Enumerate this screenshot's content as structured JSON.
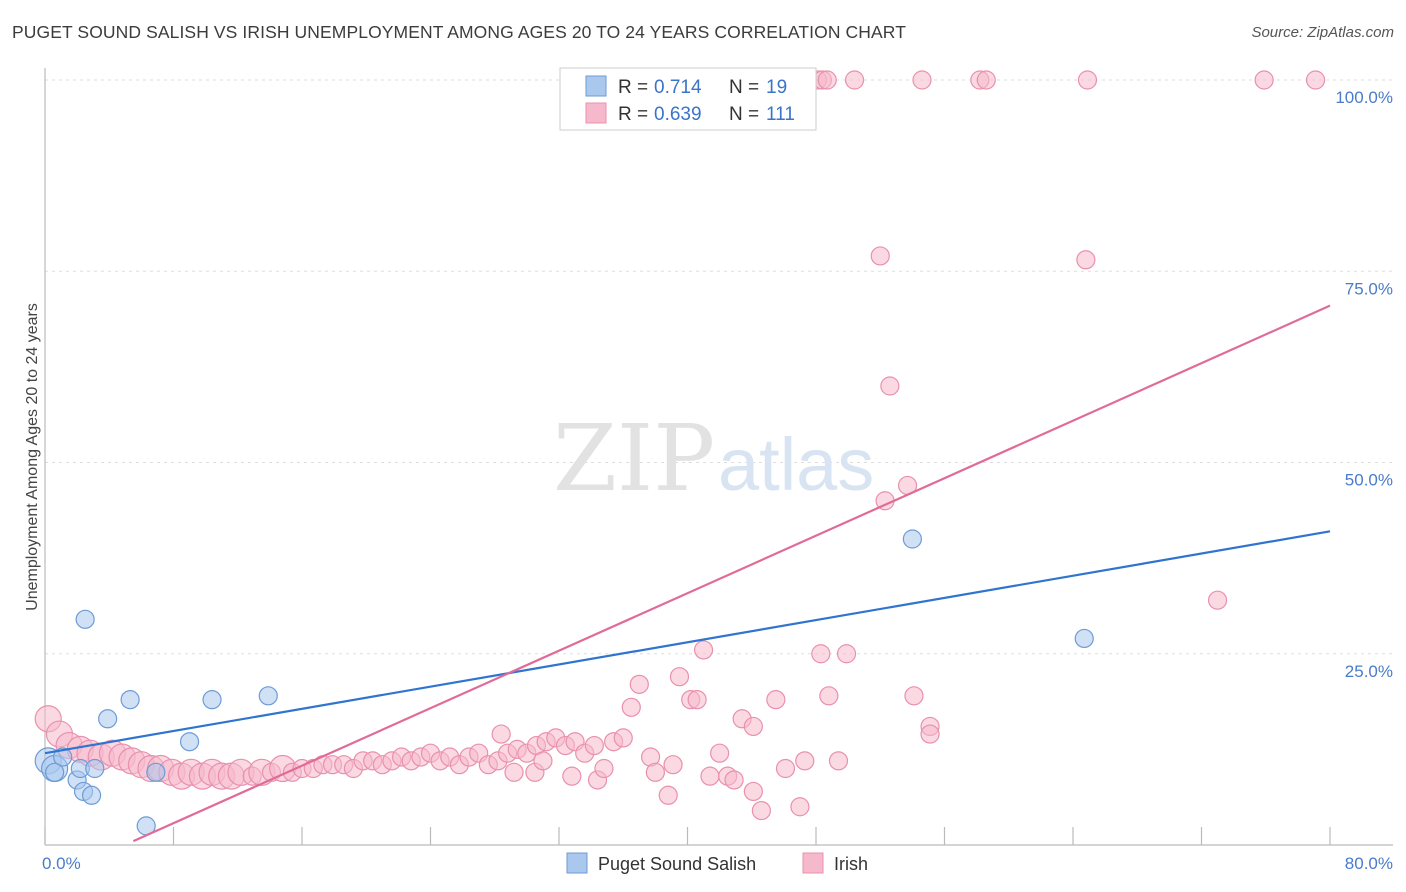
{
  "title": "PUGET SOUND SALISH VS IRISH UNEMPLOYMENT AMONG AGES 20 TO 24 YEARS CORRELATION CHART",
  "source": "Source: ZipAtlas.com",
  "watermark": {
    "zip": "ZIP",
    "atlas": "atlas"
  },
  "colors": {
    "blue_fill": "#aac8ee",
    "blue_stroke": "#6e9bd6",
    "blue_line": "#2f74cf",
    "pink_fill": "#f6b9cc",
    "pink_stroke": "#e990ae",
    "pink_line": "#e06b98",
    "grid": "#dddddd",
    "axis": "#bbbbbb"
  },
  "chart_data": {
    "type": "scatter",
    "xlabel": "",
    "ylabel": "Unemployment Among Ages 20 to 24 years",
    "xlim": [
      0,
      80
    ],
    "ylim": [
      0,
      100
    ],
    "x_ticks": [
      "0.0%",
      "80.0%"
    ],
    "y_ticks": [
      {
        "value": 25,
        "label": "25.0%"
      },
      {
        "value": 50,
        "label": "50.0%"
      },
      {
        "value": 75,
        "label": "75.0%"
      },
      {
        "value": 100,
        "label": "100.0%"
      }
    ],
    "grid": true,
    "legend_position": "top-center",
    "legend": [
      {
        "series": "Puget Sound Salish",
        "r_label": "R =",
        "r": "0.714",
        "n_label": "N =",
        "n": "19"
      },
      {
        "series": "Irish",
        "r_label": "R =",
        "r": "0.639",
        "n_label": "N =",
        "n": "111"
      }
    ],
    "series": [
      {
        "name": "Puget Sound Salish",
        "color": "#aac8ee",
        "trend": {
          "x": [
            0,
            80
          ],
          "y": [
            12.0,
            41.0
          ]
        },
        "points": [
          [
            0.2,
            11.0,
            2
          ],
          [
            0.6,
            10.0,
            2
          ],
          [
            1.1,
            11.5,
            1
          ],
          [
            2.0,
            8.5,
            1
          ],
          [
            2.2,
            10.0,
            1
          ],
          [
            2.4,
            7.0,
            1
          ],
          [
            2.5,
            29.5,
            1
          ],
          [
            2.9,
            6.5,
            1
          ],
          [
            3.1,
            10.0,
            1
          ],
          [
            3.9,
            16.5,
            1
          ],
          [
            5.3,
            19.0,
            1
          ],
          [
            6.3,
            2.5,
            1
          ],
          [
            6.9,
            9.5,
            1
          ],
          [
            9.0,
            13.5,
            1
          ],
          [
            10.4,
            19.0,
            1
          ],
          [
            13.9,
            19.5,
            1
          ],
          [
            54.0,
            40.0,
            1
          ],
          [
            64.7,
            27.0,
            1
          ],
          [
            0.6,
            9.5,
            1
          ]
        ]
      },
      {
        "name": "Irish",
        "color": "#f6b9cc",
        "trend": {
          "x": [
            5.5,
            80
          ],
          "y": [
            0.5,
            70.5
          ]
        },
        "points": [
          [
            0.2,
            16.5,
            2
          ],
          [
            0.9,
            14.5,
            2
          ],
          [
            1.5,
            13.0,
            2
          ],
          [
            2.2,
            12.5,
            2
          ],
          [
            2.8,
            12.0,
            2
          ],
          [
            3.5,
            11.5,
            2
          ],
          [
            4.2,
            12.0,
            2
          ],
          [
            4.8,
            11.5,
            2
          ],
          [
            5.4,
            11.0,
            2
          ],
          [
            6.0,
            10.5,
            2
          ],
          [
            6.6,
            10.0,
            2
          ],
          [
            7.2,
            10.0,
            2
          ],
          [
            7.9,
            9.5,
            2
          ],
          [
            8.5,
            9.0,
            2
          ],
          [
            9.1,
            9.5,
            2
          ],
          [
            9.8,
            9.0,
            2
          ],
          [
            10.4,
            9.5,
            2
          ],
          [
            11.0,
            9.0,
            2
          ],
          [
            11.6,
            9.0,
            2
          ],
          [
            12.2,
            9.5,
            2
          ],
          [
            12.9,
            9.0,
            1
          ],
          [
            13.5,
            9.5,
            2
          ],
          [
            14.1,
            9.5,
            1
          ],
          [
            14.8,
            10.0,
            2
          ],
          [
            15.4,
            9.5,
            1
          ],
          [
            16.0,
            10.0,
            1
          ],
          [
            16.7,
            10.0,
            1
          ],
          [
            17.3,
            10.5,
            1
          ],
          [
            17.9,
            10.5,
            1
          ],
          [
            18.6,
            10.5,
            1
          ],
          [
            19.2,
            10.0,
            1
          ],
          [
            19.8,
            11.0,
            1
          ],
          [
            20.4,
            11.0,
            1
          ],
          [
            21.0,
            10.5,
            1
          ],
          [
            21.6,
            11.0,
            1
          ],
          [
            22.2,
            11.5,
            1
          ],
          [
            22.8,
            11.0,
            1
          ],
          [
            23.4,
            11.5,
            1
          ],
          [
            24.0,
            12.0,
            1
          ],
          [
            24.6,
            11.0,
            1
          ],
          [
            25.2,
            11.5,
            1
          ],
          [
            25.8,
            10.5,
            1
          ],
          [
            26.4,
            11.5,
            1
          ],
          [
            27.0,
            12.0,
            1
          ],
          [
            27.6,
            10.5,
            1
          ],
          [
            28.2,
            11.0,
            1
          ],
          [
            28.8,
            12.0,
            1
          ],
          [
            29.4,
            12.5,
            1
          ],
          [
            30.0,
            12.0,
            1
          ],
          [
            30.6,
            13.0,
            1
          ],
          [
            31.2,
            13.5,
            1
          ],
          [
            31.8,
            14.0,
            1
          ],
          [
            32.4,
            13.0,
            1
          ],
          [
            33.0,
            13.5,
            1
          ],
          [
            33.6,
            12.0,
            1
          ],
          [
            34.2,
            13.0,
            1
          ],
          [
            28.4,
            14.5,
            1
          ],
          [
            29.2,
            9.5,
            1
          ],
          [
            30.5,
            9.5,
            1
          ],
          [
            31.0,
            11.0,
            1
          ],
          [
            32.8,
            9.0,
            1
          ],
          [
            34.4,
            8.5,
            1
          ],
          [
            34.8,
            10.0,
            1
          ],
          [
            35.4,
            13.5,
            1
          ],
          [
            36.0,
            14.0,
            1
          ],
          [
            36.5,
            18.0,
            1
          ],
          [
            37.0,
            21.0,
            1
          ],
          [
            37.7,
            11.5,
            1
          ],
          [
            38.0,
            9.5,
            1
          ],
          [
            38.8,
            6.5,
            1
          ],
          [
            39.1,
            10.5,
            1
          ],
          [
            39.5,
            22.0,
            1
          ],
          [
            40.2,
            19.0,
            1
          ],
          [
            40.6,
            19.0,
            1
          ],
          [
            41.0,
            25.5,
            1
          ],
          [
            41.4,
            9.0,
            1
          ],
          [
            42.0,
            12.0,
            1
          ],
          [
            42.5,
            9.0,
            1
          ],
          [
            42.9,
            8.5,
            1
          ],
          [
            43.4,
            16.5,
            1
          ],
          [
            44.1,
            15.5,
            1
          ],
          [
            44.1,
            7.0,
            1
          ],
          [
            44.6,
            4.5,
            1
          ],
          [
            45.5,
            19.0,
            1
          ],
          [
            46.1,
            10.0,
            1
          ],
          [
            47.0,
            5.0,
            1
          ],
          [
            47.3,
            11.0,
            1
          ],
          [
            48.3,
            25.0,
            1
          ],
          [
            48.8,
            19.5,
            1
          ],
          [
            49.4,
            11.0,
            1
          ],
          [
            49.9,
            25.0,
            1
          ],
          [
            52.3,
            45.0,
            1
          ],
          [
            53.7,
            47.0,
            1
          ],
          [
            54.1,
            19.5,
            1
          ],
          [
            55.1,
            15.5,
            1
          ],
          [
            55.1,
            14.5,
            1
          ],
          [
            52.0,
            77.0,
            1
          ],
          [
            52.6,
            60.0,
            1
          ],
          [
            64.8,
            76.5,
            1
          ],
          [
            73.0,
            32.0,
            1
          ],
          [
            48.1,
            100.0,
            1
          ],
          [
            48.4,
            100.0,
            1
          ],
          [
            48.7,
            100.0,
            1
          ],
          [
            50.4,
            100.0,
            1
          ],
          [
            54.6,
            100.0,
            1
          ],
          [
            58.2,
            100.0,
            1
          ],
          [
            58.6,
            100.0,
            1
          ],
          [
            64.9,
            100.0,
            1
          ],
          [
            75.9,
            100.0,
            1
          ],
          [
            79.1,
            100.0,
            1
          ]
        ]
      }
    ],
    "bottom_legend": [
      "Puget Sound Salish",
      "Irish"
    ]
  }
}
